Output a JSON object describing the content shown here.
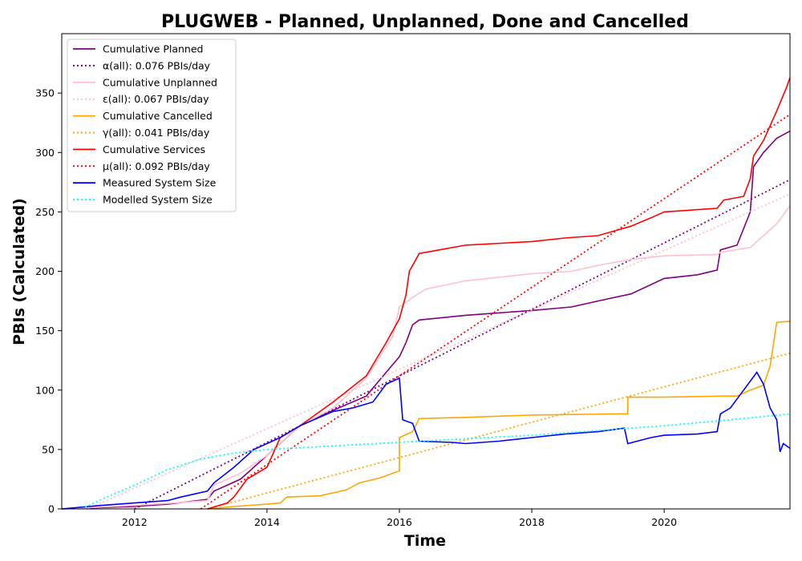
{
  "chart_data": {
    "type": "line",
    "title": "PLUGWEB - Planned, Unplanned, Done  and Cancelled",
    "xlabel": "Time",
    "ylabel": "PBIs (Calculated)",
    "xlim": [
      2010.9,
      2021.9
    ],
    "ylim": [
      0,
      400
    ],
    "x_ticks": [
      2012,
      2014,
      2016,
      2018,
      2020
    ],
    "x_tick_labels": [
      "2012",
      "2014",
      "2016",
      "2018",
      "2020"
    ],
    "y_ticks": [
      0,
      50,
      100,
      150,
      200,
      250,
      300,
      350
    ],
    "y_tick_labels": [
      "0",
      "50",
      "100",
      "150",
      "200",
      "250",
      "300",
      "350"
    ],
    "grid": false,
    "legend_position": "top-left",
    "series": [
      {
        "name": "Cumulative Planned",
        "color": "#800080",
        "style": "solid",
        "points": [
          [
            2010.9,
            0
          ],
          [
            2012.0,
            2
          ],
          [
            2012.5,
            4
          ],
          [
            2013.1,
            8
          ],
          [
            2013.2,
            15
          ],
          [
            2013.6,
            25
          ],
          [
            2014.0,
            45
          ],
          [
            2014.5,
            70
          ],
          [
            2015.0,
            83
          ],
          [
            2015.5,
            95
          ],
          [
            2015.8,
            115
          ],
          [
            2016.0,
            128
          ],
          [
            2016.1,
            140
          ],
          [
            2016.2,
            155
          ],
          [
            2016.3,
            159
          ],
          [
            2017.0,
            163
          ],
          [
            2017.5,
            165
          ],
          [
            2018.0,
            167
          ],
          [
            2018.6,
            170
          ],
          [
            2019.0,
            175
          ],
          [
            2019.5,
            181
          ],
          [
            2020.0,
            194
          ],
          [
            2020.5,
            197
          ],
          [
            2020.8,
            201
          ],
          [
            2020.85,
            218
          ],
          [
            2021.1,
            222
          ],
          [
            2021.3,
            250
          ],
          [
            2021.35,
            288
          ],
          [
            2021.5,
            300
          ],
          [
            2021.7,
            312
          ],
          [
            2021.9,
            318
          ]
        ]
      },
      {
        "name": "α(all): 0.076 PBIs/day",
        "color": "#800080",
        "style": "dotted",
        "points": [
          [
            2012.0,
            0
          ],
          [
            2021.9,
            277
          ]
        ]
      },
      {
        "name": "Cumulative Unplanned",
        "color": "#ffc0cb",
        "style": "solid",
        "points": [
          [
            2010.9,
            0
          ],
          [
            2012.0,
            3
          ],
          [
            2012.6,
            5
          ],
          [
            2013.1,
            7
          ],
          [
            2013.2,
            20
          ],
          [
            2013.6,
            30
          ],
          [
            2014.0,
            45
          ],
          [
            2014.5,
            70
          ],
          [
            2015.0,
            85
          ],
          [
            2015.5,
            110
          ],
          [
            2015.9,
            145
          ],
          [
            2016.0,
            170
          ],
          [
            2016.2,
            178
          ],
          [
            2016.4,
            185
          ],
          [
            2017.0,
            192
          ],
          [
            2018.0,
            198
          ],
          [
            2018.6,
            200
          ],
          [
            2019.0,
            205
          ],
          [
            2019.5,
            210
          ],
          [
            2020.0,
            213
          ],
          [
            2020.8,
            214
          ],
          [
            2020.85,
            216
          ],
          [
            2021.3,
            220
          ],
          [
            2021.5,
            230
          ],
          [
            2021.7,
            240
          ],
          [
            2021.9,
            255
          ]
        ]
      },
      {
        "name": "ε(all): 0.067 PBIs/day",
        "color": "#ffc0cb",
        "style": "dotted",
        "points": [
          [
            2011.3,
            0
          ],
          [
            2021.9,
            265
          ]
        ]
      },
      {
        "name": "Cumulative Cancelled",
        "color": "#ffa500",
        "style": "solid",
        "points": [
          [
            2013.1,
            0
          ],
          [
            2013.5,
            2
          ],
          [
            2014.0,
            4
          ],
          [
            2014.2,
            5
          ],
          [
            2014.3,
            10
          ],
          [
            2014.8,
            11
          ],
          [
            2015.2,
            16
          ],
          [
            2015.4,
            22
          ],
          [
            2015.7,
            26
          ],
          [
            2016.0,
            32
          ],
          [
            2016.0,
            60
          ],
          [
            2016.2,
            65
          ],
          [
            2016.3,
            76
          ],
          [
            2017.0,
            77
          ],
          [
            2018.0,
            79
          ],
          [
            2019.3,
            80
          ],
          [
            2019.45,
            80
          ],
          [
            2019.45,
            94
          ],
          [
            2020.0,
            94
          ],
          [
            2020.9,
            95
          ],
          [
            2021.1,
            95
          ],
          [
            2021.3,
            100
          ],
          [
            2021.5,
            104
          ],
          [
            2021.6,
            120
          ],
          [
            2021.7,
            157
          ],
          [
            2021.9,
            158
          ]
        ]
      },
      {
        "name": "γ(all): 0.041 PBIs/day",
        "color": "#ffa500",
        "style": "dotted",
        "points": [
          [
            2013.1,
            0
          ],
          [
            2021.9,
            131
          ]
        ]
      },
      {
        "name": "Cumulative Services",
        "color": "#ff0000",
        "style": "solid",
        "points": [
          [
            2013.1,
            0
          ],
          [
            2013.4,
            5
          ],
          [
            2013.5,
            10
          ],
          [
            2013.7,
            25
          ],
          [
            2014.0,
            35
          ],
          [
            2014.2,
            60
          ],
          [
            2014.5,
            70
          ],
          [
            2015.0,
            90
          ],
          [
            2015.5,
            112
          ],
          [
            2015.8,
            140
          ],
          [
            2016.0,
            160
          ],
          [
            2016.1,
            180
          ],
          [
            2016.15,
            200
          ],
          [
            2016.3,
            215
          ],
          [
            2016.5,
            217
          ],
          [
            2017.0,
            222
          ],
          [
            2018.0,
            225
          ],
          [
            2018.5,
            228
          ],
          [
            2019.0,
            230
          ],
          [
            2019.5,
            238
          ],
          [
            2019.8,
            245
          ],
          [
            2020.0,
            250
          ],
          [
            2020.8,
            253
          ],
          [
            2020.9,
            260
          ],
          [
            2021.2,
            263
          ],
          [
            2021.3,
            278
          ],
          [
            2021.35,
            297
          ],
          [
            2021.5,
            310
          ],
          [
            2021.7,
            335
          ],
          [
            2021.85,
            355
          ],
          [
            2021.9,
            363
          ]
        ]
      },
      {
        "name": "μ(all): 0.092 PBIs/day",
        "color": "#ff0000",
        "style": "dotted",
        "points": [
          [
            2013.0,
            0
          ],
          [
            2021.9,
            332
          ]
        ]
      },
      {
        "name": "Measured System Size",
        "color": "#0000ff",
        "style": "solid",
        "points": [
          [
            2010.9,
            0
          ],
          [
            2011.5,
            3
          ],
          [
            2012.0,
            5
          ],
          [
            2012.5,
            7
          ],
          [
            2012.7,
            10
          ],
          [
            2013.1,
            15
          ],
          [
            2013.2,
            22
          ],
          [
            2013.5,
            35
          ],
          [
            2013.8,
            50
          ],
          [
            2014.0,
            55
          ],
          [
            2014.2,
            60
          ],
          [
            2014.5,
            70
          ],
          [
            2015.0,
            82
          ],
          [
            2015.3,
            85
          ],
          [
            2015.6,
            90
          ],
          [
            2015.8,
            105
          ],
          [
            2016.0,
            110
          ],
          [
            2016.05,
            75
          ],
          [
            2016.2,
            72
          ],
          [
            2016.3,
            57
          ],
          [
            2016.8,
            56
          ],
          [
            2017.0,
            55
          ],
          [
            2017.5,
            57
          ],
          [
            2018.0,
            60
          ],
          [
            2018.5,
            63
          ],
          [
            2019.0,
            65
          ],
          [
            2019.4,
            68
          ],
          [
            2019.45,
            55
          ],
          [
            2019.8,
            60
          ],
          [
            2020.0,
            62
          ],
          [
            2020.5,
            63
          ],
          [
            2020.8,
            65
          ],
          [
            2020.85,
            80
          ],
          [
            2021.0,
            85
          ],
          [
            2021.2,
            100
          ],
          [
            2021.4,
            115
          ],
          [
            2021.5,
            105
          ],
          [
            2021.6,
            85
          ],
          [
            2021.7,
            75
          ],
          [
            2021.75,
            48
          ],
          [
            2021.8,
            55
          ],
          [
            2021.9,
            51
          ]
        ]
      },
      {
        "name": "Modelled System Size",
        "color": "#00ffff",
        "style": "dotted",
        "points": [
          [
            2011.2,
            0
          ],
          [
            2011.5,
            8
          ],
          [
            2012.0,
            20
          ],
          [
            2012.5,
            33
          ],
          [
            2013.0,
            42
          ],
          [
            2013.5,
            47
          ],
          [
            2014.0,
            50
          ],
          [
            2015.0,
            53
          ],
          [
            2016.0,
            56
          ],
          [
            2017.0,
            59
          ],
          [
            2018.0,
            62
          ],
          [
            2019.0,
            66
          ],
          [
            2020.0,
            70
          ],
          [
            2021.0,
            75
          ],
          [
            2021.9,
            80
          ]
        ]
      }
    ]
  }
}
